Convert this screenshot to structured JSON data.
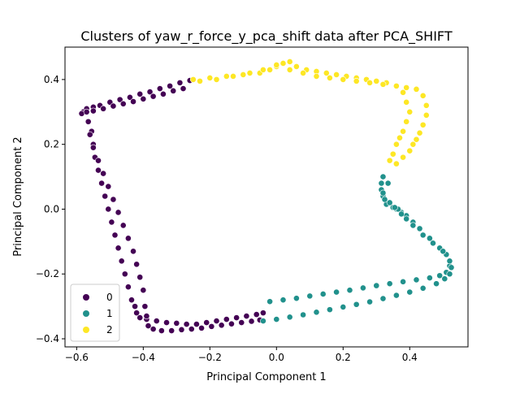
{
  "chart_data": {
    "type": "scatter",
    "title": "Clusters of yaw_r_force_y_pca_shift data after PCA_SHIFT",
    "xlabel": "Principal Component 1",
    "ylabel": "Principal Component 2",
    "xlim": [
      -0.635,
      0.575
    ],
    "ylim": [
      -0.425,
      0.5
    ],
    "xticks": [
      -0.6,
      -0.4,
      -0.2,
      0.0,
      0.2,
      0.4
    ],
    "xtick_labels": [
      "−0.6",
      "−0.4",
      "−0.2",
      "0.0",
      "0.2",
      "0.4"
    ],
    "yticks": [
      -0.4,
      -0.2,
      0.0,
      0.2,
      0.4
    ],
    "ytick_labels": [
      "−0.4",
      "−0.2",
      "0.0",
      "0.2",
      "0.4"
    ],
    "legend_position": "lower-left",
    "colors": {
      "0": "#440154",
      "1": "#21918c",
      "2": "#fde725"
    },
    "series": [
      {
        "name": "0",
        "x": [
          -0.58,
          -0.57,
          -0.55,
          -0.53,
          -0.5,
          -0.47,
          -0.44,
          -0.41,
          -0.38,
          -0.35,
          -0.32,
          -0.29,
          -0.26,
          -0.585,
          -0.57,
          -0.55,
          -0.52,
          -0.49,
          -0.46,
          -0.43,
          -0.4,
          -0.37,
          -0.34,
          -0.31,
          -0.28,
          -0.555,
          -0.55,
          -0.545,
          -0.535,
          -0.525,
          -0.515,
          -0.505,
          -0.495,
          -0.485,
          -0.475,
          -0.465,
          -0.455,
          -0.445,
          -0.435,
          -0.425,
          -0.42,
          -0.41,
          -0.39,
          -0.36,
          -0.33,
          -0.3,
          -0.27,
          -0.24,
          -0.21,
          -0.18,
          -0.15,
          -0.12,
          -0.09,
          -0.06,
          -0.04,
          -0.565,
          -0.56,
          -0.55,
          -0.535,
          -0.52,
          -0.505,
          -0.49,
          -0.475,
          -0.46,
          -0.445,
          -0.43,
          -0.42,
          -0.41,
          -0.4,
          -0.395,
          -0.39,
          -0.385,
          -0.37,
          -0.345,
          -0.315,
          -0.285,
          -0.255,
          -0.225,
          -0.195,
          -0.165,
          -0.135,
          -0.105,
          -0.075,
          -0.05
        ],
        "y": [
          0.3,
          0.31,
          0.315,
          0.32,
          0.33,
          0.338,
          0.345,
          0.355,
          0.362,
          0.372,
          0.38,
          0.39,
          0.397,
          0.295,
          0.3,
          0.303,
          0.31,
          0.318,
          0.325,
          0.332,
          0.34,
          0.348,
          0.355,
          0.365,
          0.372,
          0.24,
          0.2,
          0.16,
          0.12,
          0.08,
          0.04,
          0.0,
          -0.04,
          -0.08,
          -0.12,
          -0.16,
          -0.2,
          -0.24,
          -0.28,
          -0.3,
          -0.32,
          -0.335,
          -0.34,
          -0.345,
          -0.35,
          -0.352,
          -0.355,
          -0.355,
          -0.35,
          -0.345,
          -0.34,
          -0.335,
          -0.33,
          -0.325,
          -0.32,
          0.27,
          0.23,
          0.19,
          0.15,
          0.11,
          0.07,
          0.03,
          -0.01,
          -0.05,
          -0.09,
          -0.13,
          -0.17,
          -0.21,
          -0.25,
          -0.3,
          -0.33,
          -0.36,
          -0.37,
          -0.375,
          -0.375,
          -0.372,
          -0.37,
          -0.367,
          -0.362,
          -0.358,
          -0.354,
          -0.35,
          -0.346,
          -0.342
        ]
      },
      {
        "name": "1",
        "x": [
          -0.02,
          0.02,
          0.06,
          0.1,
          0.14,
          0.18,
          0.22,
          0.26,
          0.3,
          0.34,
          0.38,
          0.42,
          0.46,
          0.49,
          0.51,
          0.52,
          0.52,
          0.51,
          0.49,
          0.46,
          0.43,
          0.41,
          0.39,
          0.375,
          0.36,
          0.35,
          0.33,
          0.32,
          0.315,
          0.315,
          0.32,
          -0.04,
          0.0,
          0.04,
          0.08,
          0.12,
          0.16,
          0.2,
          0.24,
          0.28,
          0.32,
          0.36,
          0.4,
          0.44,
          0.48,
          0.505,
          0.52,
          0.525,
          0.52,
          0.5,
          0.47,
          0.44,
          0.41,
          0.39,
          0.375,
          0.365,
          0.355,
          0.34,
          0.325,
          0.32,
          0.335
        ],
        "y": [
          -0.285,
          -0.28,
          -0.275,
          -0.268,
          -0.262,
          -0.256,
          -0.25,
          -0.243,
          -0.236,
          -0.23,
          -0.224,
          -0.218,
          -0.212,
          -0.205,
          -0.195,
          -0.175,
          -0.16,
          -0.14,
          -0.12,
          -0.09,
          -0.06,
          -0.04,
          -0.02,
          -0.01,
          0.0,
          0.005,
          0.015,
          0.04,
          0.06,
          0.08,
          0.1,
          -0.345,
          -0.34,
          -0.333,
          -0.326,
          -0.318,
          -0.31,
          -0.302,
          -0.294,
          -0.286,
          -0.276,
          -0.266,
          -0.256,
          -0.244,
          -0.23,
          -0.215,
          -0.2,
          -0.18,
          -0.16,
          -0.13,
          -0.105,
          -0.08,
          -0.05,
          -0.03,
          -0.015,
          0.0,
          0.005,
          0.02,
          0.03,
          0.05,
          0.08
        ]
      },
      {
        "name": "2",
        "x": [
          -0.25,
          -0.2,
          -0.15,
          -0.1,
          -0.05,
          -0.02,
          0.0,
          0.02,
          0.04,
          0.06,
          0.09,
          0.12,
          0.15,
          0.18,
          0.21,
          0.24,
          0.27,
          0.3,
          0.33,
          0.36,
          0.38,
          0.39,
          0.4,
          0.39,
          0.38,
          0.37,
          0.36,
          0.35,
          0.34,
          -0.23,
          -0.18,
          -0.13,
          -0.08,
          -0.04,
          0.0,
          0.04,
          0.08,
          0.12,
          0.16,
          0.2,
          0.24,
          0.28,
          0.32,
          0.36,
          0.39,
          0.42,
          0.44,
          0.45,
          0.45,
          0.44,
          0.43,
          0.42,
          0.41,
          0.4,
          0.38,
          0.36
        ],
        "y": [
          0.4,
          0.405,
          0.41,
          0.415,
          0.42,
          0.43,
          0.44,
          0.45,
          0.455,
          0.44,
          0.43,
          0.425,
          0.42,
          0.415,
          0.41,
          0.405,
          0.4,
          0.395,
          0.39,
          0.38,
          0.36,
          0.33,
          0.3,
          0.27,
          0.24,
          0.22,
          0.2,
          0.17,
          0.15,
          0.395,
          0.4,
          0.41,
          0.42,
          0.43,
          0.445,
          0.43,
          0.42,
          0.41,
          0.405,
          0.4,
          0.395,
          0.39,
          0.385,
          0.38,
          0.375,
          0.37,
          0.35,
          0.32,
          0.29,
          0.26,
          0.235,
          0.215,
          0.2,
          0.18,
          0.16,
          0.14
        ]
      }
    ]
  }
}
